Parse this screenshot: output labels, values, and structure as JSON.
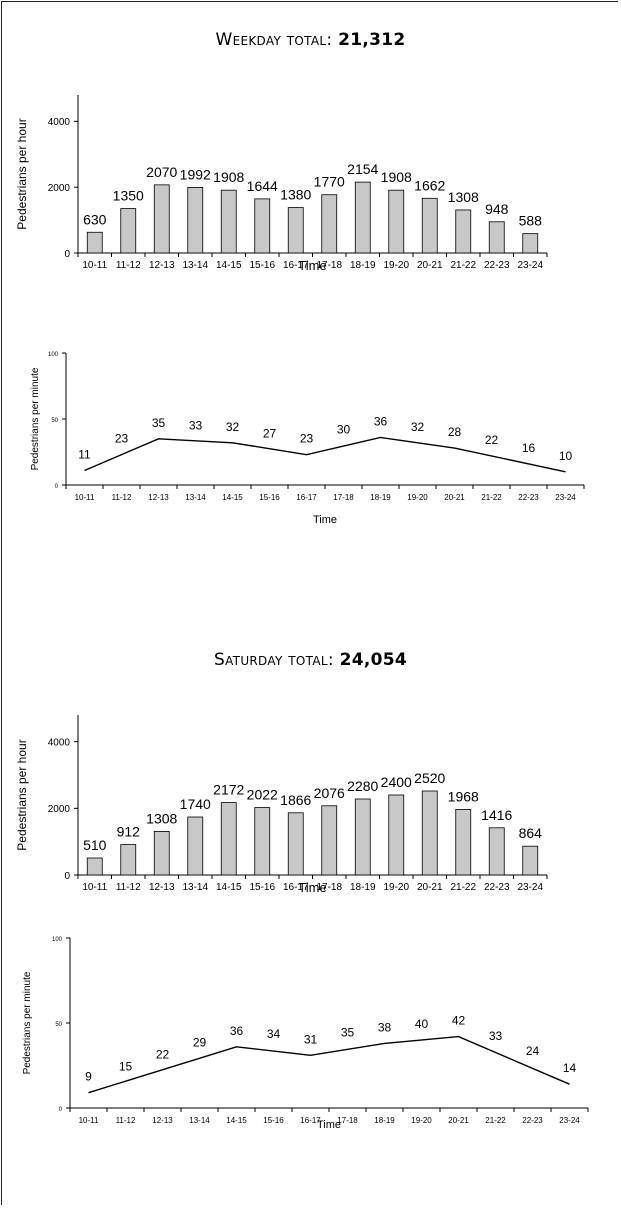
{
  "sections": [
    {
      "label": "Weekday total: ",
      "total": "21,312",
      "charts": [
        {
          "type": "bar",
          "xlabel": "Time",
          "ylabel": "Pedestrians per hour",
          "ylim": [
            0,
            4800
          ],
          "yticks": [
            0,
            2000,
            4000
          ],
          "categories": [
            "10-11",
            "11-12",
            "12-13",
            "13-14",
            "14-15",
            "15-16",
            "16-17",
            "17-18",
            "18-19",
            "19-20",
            "20-21",
            "21-22",
            "22-23",
            "23-24"
          ],
          "values": [
            630,
            1350,
            2070,
            1992,
            1908,
            1644,
            1380,
            1770,
            2154,
            1908,
            1662,
            1308,
            948,
            588
          ],
          "legend": false,
          "grid": false
        },
        {
          "type": "line",
          "xlabel": "Time",
          "ylabel": "Pedestrians per minute",
          "ylim": [
            0,
            100
          ],
          "yticks": [
            0,
            50,
            100
          ],
          "categories": [
            "10-11",
            "11-12",
            "12-13",
            "13-14",
            "14-15",
            "15-16",
            "16-17",
            "17-18",
            "18-19",
            "19-20",
            "20-21",
            "21-22",
            "22-23",
            "23-24"
          ],
          "values": [
            11,
            23,
            35,
            33,
            32,
            27,
            23,
            30,
            36,
            32,
            28,
            22,
            16,
            10
          ],
          "line_points": [
            [
              0,
              11
            ],
            [
              2,
              35
            ],
            [
              4,
              32
            ],
            [
              6,
              23
            ],
            [
              8,
              36
            ],
            [
              10,
              28
            ],
            [
              13,
              10
            ]
          ],
          "legend": false,
          "grid": false
        }
      ]
    },
    {
      "label": "Saturday total: ",
      "total": "24,054",
      "charts": [
        {
          "type": "bar",
          "xlabel": "Time",
          "ylabel": "Pedestrians per hour",
          "ylim": [
            0,
            4800
          ],
          "yticks": [
            0,
            2000,
            4000
          ],
          "categories": [
            "10-11",
            "11-12",
            "12-13",
            "13-14",
            "14-15",
            "15-16",
            "16-17",
            "17-18",
            "18-19",
            "19-20",
            "20-21",
            "21-22",
            "22-23",
            "23-24"
          ],
          "values": [
            510,
            912,
            1308,
            1740,
            2172,
            2022,
            1866,
            2076,
            2280,
            2400,
            2520,
            1968,
            1416,
            864
          ],
          "legend": false,
          "grid": false
        },
        {
          "type": "line",
          "xlabel": "Time",
          "ylabel": "Pedestrians per minute",
          "ylim": [
            0,
            100
          ],
          "yticks": [
            0,
            50,
            100
          ],
          "categories": [
            "10-11",
            "11-12",
            "12-13",
            "13-14",
            "14-15",
            "15-16",
            "16-17",
            "17-18",
            "18-19",
            "19-20",
            "20-21",
            "21-22",
            "22-23",
            "23-24"
          ],
          "values": [
            9,
            15,
            22,
            29,
            36,
            34,
            31,
            35,
            38,
            40,
            42,
            33,
            24,
            14
          ],
          "line_points": [
            [
              0,
              9
            ],
            [
              4,
              36
            ],
            [
              6,
              31
            ],
            [
              8,
              38
            ],
            [
              10,
              42
            ],
            [
              13,
              14
            ]
          ],
          "legend": false,
          "grid": false
        }
      ]
    }
  ],
  "chart_data": [
    {
      "type": "bar",
      "xlabel": "Time",
      "ylabel": "Pedestrians per hour",
      "ylim": [
        0,
        4800
      ],
      "categories": [
        "10-11",
        "11-12",
        "12-13",
        "13-14",
        "14-15",
        "15-16",
        "16-17",
        "17-18",
        "18-19",
        "19-20",
        "20-21",
        "21-22",
        "22-23",
        "23-24"
      ],
      "values": [
        630,
        1350,
        2070,
        1992,
        1908,
        1644,
        1380,
        1770,
        2154,
        1908,
        1662,
        1308,
        948,
        588
      ]
    },
    {
      "type": "line",
      "xlabel": "Time",
      "ylabel": "Pedestrians per minute",
      "ylim": [
        0,
        100
      ],
      "categories": [
        "10-11",
        "11-12",
        "12-13",
        "13-14",
        "14-15",
        "15-16",
        "16-17",
        "17-18",
        "18-19",
        "19-20",
        "20-21",
        "21-22",
        "22-23",
        "23-24"
      ],
      "values": [
        11,
        23,
        35,
        33,
        32,
        27,
        23,
        30,
        36,
        32,
        28,
        22,
        16,
        10
      ]
    },
    {
      "type": "bar",
      "xlabel": "Time",
      "ylabel": "Pedestrians per hour",
      "ylim": [
        0,
        4800
      ],
      "categories": [
        "10-11",
        "11-12",
        "12-13",
        "13-14",
        "14-15",
        "15-16",
        "16-17",
        "17-18",
        "18-19",
        "19-20",
        "20-21",
        "21-22",
        "22-23",
        "23-24"
      ],
      "values": [
        510,
        912,
        1308,
        1740,
        2172,
        2022,
        1866,
        2076,
        2280,
        2400,
        2520,
        1968,
        1416,
        864
      ]
    },
    {
      "type": "line",
      "xlabel": "Time",
      "ylabel": "Pedestrians per minute",
      "ylim": [
        0,
        100
      ],
      "categories": [
        "10-11",
        "11-12",
        "12-13",
        "13-14",
        "14-15",
        "15-16",
        "16-17",
        "17-18",
        "18-19",
        "19-20",
        "20-21",
        "21-22",
        "22-23",
        "23-24"
      ],
      "values": [
        9,
        15,
        22,
        29,
        36,
        34,
        31,
        35,
        38,
        40,
        42,
        33,
        24,
        14
      ]
    }
  ]
}
